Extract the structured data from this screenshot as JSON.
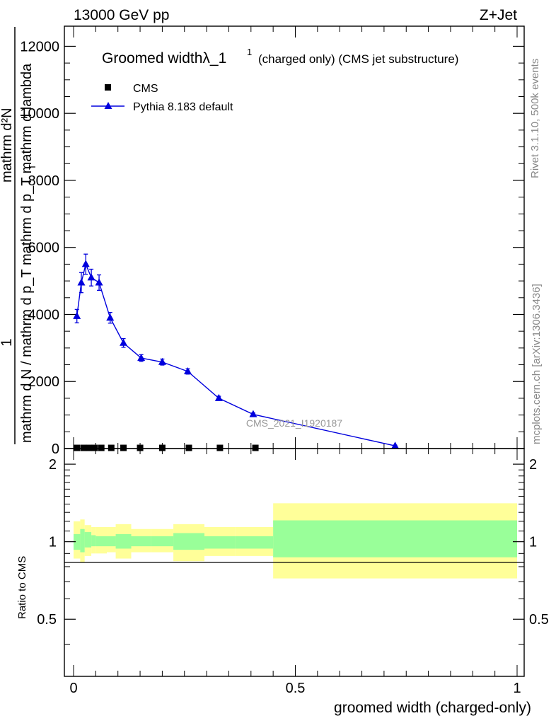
{
  "header": {
    "left": "13000 GeV pp",
    "right": "Z+Jet"
  },
  "side": {
    "rivet": "Rivet 3.1.10,  500k events",
    "mcplots": "mcplots.cern.ch [arXiv:1306.3436]"
  },
  "chart_data": [
    {
      "type": "line",
      "title": "Groomed widthλ_1",
      "title_sup": "1",
      "subtitle": "(charged only) (CMS jet substructure)",
      "ylabel_num": "1",
      "ylabel_den": "mathrm d N / mathrm d p_T",
      "ylabel_rhs_num": "mathrm d²N",
      "ylabel_rhs_den": "mathrm d p_T mathrm d lambda",
      "ylabel_rhs_den_sub": "T",
      "watermark": "CMS_2021_I1920187",
      "xlim": [
        0,
        1
      ],
      "ylim": [
        0,
        12600
      ],
      "yticks": [
        0,
        2000,
        4000,
        6000,
        8000,
        10000,
        12000
      ],
      "ytick_labels": [
        "0",
        "2000",
        "4000",
        "6000",
        "8000",
        "10000",
        "12000"
      ],
      "legend_position": "top-left",
      "series": [
        {
          "name": "CMS",
          "marker": "square",
          "color": "#000000",
          "x": [
            0.0075,
            0.0225,
            0.035,
            0.0475,
            0.0625,
            0.085,
            0.1125,
            0.15,
            0.2,
            0.26,
            0.33,
            0.41
          ],
          "y": [
            20,
            20,
            20,
            20,
            20,
            20,
            20,
            20,
            20,
            20,
            20,
            20
          ]
        },
        {
          "name": "Pythia 8.183 default",
          "marker": "triangle",
          "color": "#0000dd",
          "x": [
            0.0075,
            0.0175,
            0.0275,
            0.04,
            0.0575,
            0.0825,
            0.1125,
            0.1525,
            0.2,
            0.2575,
            0.3275,
            0.405,
            0.725
          ],
          "y": [
            3950,
            4950,
            5500,
            5100,
            4950,
            3900,
            3150,
            2700,
            2580,
            2300,
            1500,
            1020,
            80
          ],
          "err": [
            200,
            300,
            300,
            250,
            230,
            160,
            130,
            100,
            90,
            80,
            60,
            40,
            20
          ]
        }
      ]
    },
    {
      "type": "area",
      "ylabel": "Ratio to CMS",
      "xlabel": "groomed width (charged-only)",
      "xlim": [
        0,
        1
      ],
      "ylim": [
        0.3,
        2.3
      ],
      "yticks": [
        0.5,
        1,
        2
      ],
      "ytick_labels": [
        "0.5",
        "1",
        "2"
      ],
      "xticks": [
        0,
        0.5,
        1
      ],
      "xtick_labels": [
        "0",
        "0.5",
        "1"
      ],
      "colors": {
        "yellow": "#ffff99",
        "green": "#99ff99"
      },
      "bands": [
        {
          "x0": 0.0,
          "x1": 0.015,
          "y_lo": 0.86,
          "y_hi": 1.2,
          "g_lo": 0.93,
          "g_hi": 1.07
        },
        {
          "x0": 0.015,
          "x1": 0.025,
          "y_lo": 0.83,
          "y_hi": 1.22,
          "g_lo": 0.91,
          "g_hi": 1.12
        },
        {
          "x0": 0.025,
          "x1": 0.04,
          "y_lo": 0.88,
          "y_hi": 1.16,
          "g_lo": 0.95,
          "g_hi": 1.09
        },
        {
          "x0": 0.04,
          "x1": 0.05,
          "y_lo": 0.9,
          "y_hi": 1.14,
          "g_lo": 0.96,
          "g_hi": 1.06
        },
        {
          "x0": 0.05,
          "x1": 0.075,
          "y_lo": 0.9,
          "y_hi": 1.14,
          "g_lo": 0.96,
          "g_hi": 1.05
        },
        {
          "x0": 0.075,
          "x1": 0.095,
          "y_lo": 0.91,
          "y_hi": 1.14,
          "g_lo": 0.96,
          "g_hi": 1.05
        },
        {
          "x0": 0.095,
          "x1": 0.13,
          "y_lo": 0.86,
          "y_hi": 1.17,
          "g_lo": 0.94,
          "g_hi": 1.07
        },
        {
          "x0": 0.13,
          "x1": 0.175,
          "y_lo": 0.91,
          "y_hi": 1.12,
          "g_lo": 0.96,
          "g_hi": 1.05
        },
        {
          "x0": 0.175,
          "x1": 0.225,
          "y_lo": 0.91,
          "y_hi": 1.12,
          "g_lo": 0.96,
          "g_hi": 1.05
        },
        {
          "x0": 0.225,
          "x1": 0.295,
          "y_lo": 0.84,
          "y_hi": 1.17,
          "g_lo": 0.93,
          "g_hi": 1.08
        },
        {
          "x0": 0.295,
          "x1": 0.365,
          "y_lo": 0.88,
          "y_hi": 1.14,
          "g_lo": 0.94,
          "g_hi": 1.05
        },
        {
          "x0": 0.365,
          "x1": 0.45,
          "y_lo": 0.88,
          "y_hi": 1.14,
          "g_lo": 0.94,
          "g_hi": 1.05
        },
        {
          "x0": 0.45,
          "x1": 1.0,
          "y_lo": 0.72,
          "y_hi": 1.41,
          "g_lo": 0.87,
          "g_hi": 1.21
        }
      ]
    }
  ]
}
